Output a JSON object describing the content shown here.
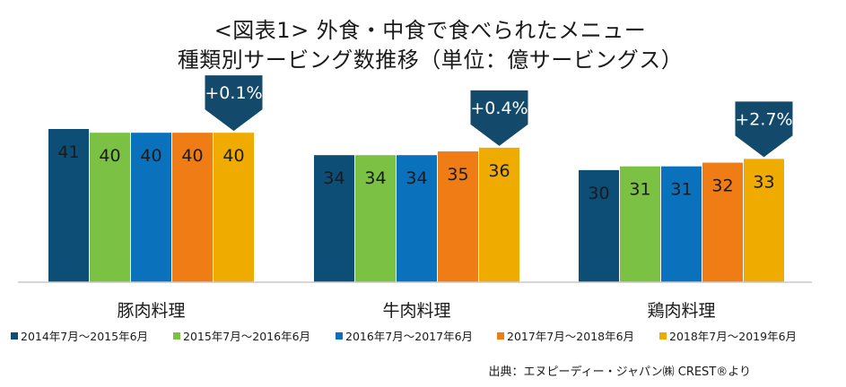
{
  "chart_data": {
    "type": "bar",
    "title": "<図表1> 外食・中食で食べられたメニュー",
    "subtitle": "種類別サービング数推移（単位：億サービングス）",
    "categories": [
      "豚肉料理",
      "牛肉料理",
      "鶏肉料理"
    ],
    "series": [
      {
        "name": "2014年7月～2015年6月",
        "color": "#0d4e77",
        "values": [
          41,
          34,
          30
        ]
      },
      {
        "name": "2015年7月～2016年6月",
        "color": "#7bc143",
        "values": [
          40,
          34,
          31
        ]
      },
      {
        "name": "2016年7月～2017年6月",
        "color": "#0a72bd",
        "values": [
          40,
          34,
          31
        ]
      },
      {
        "name": "2017年7月～2018年6月",
        "color": "#ef7c14",
        "values": [
          40,
          35,
          32
        ]
      },
      {
        "name": "2018年7月～2019年6月",
        "color": "#f0ab00",
        "values": [
          40,
          36,
          33
        ]
      }
    ],
    "annotations": [
      "+0.1%",
      "+0.4%",
      "+2.7%"
    ],
    "annotation_color": "#13496b",
    "ylim": [
      0,
      45
    ],
    "legend_position": "bottom",
    "grid": false
  },
  "source": "出典：エヌピーディー・ジャパン㈱ CREST®より"
}
